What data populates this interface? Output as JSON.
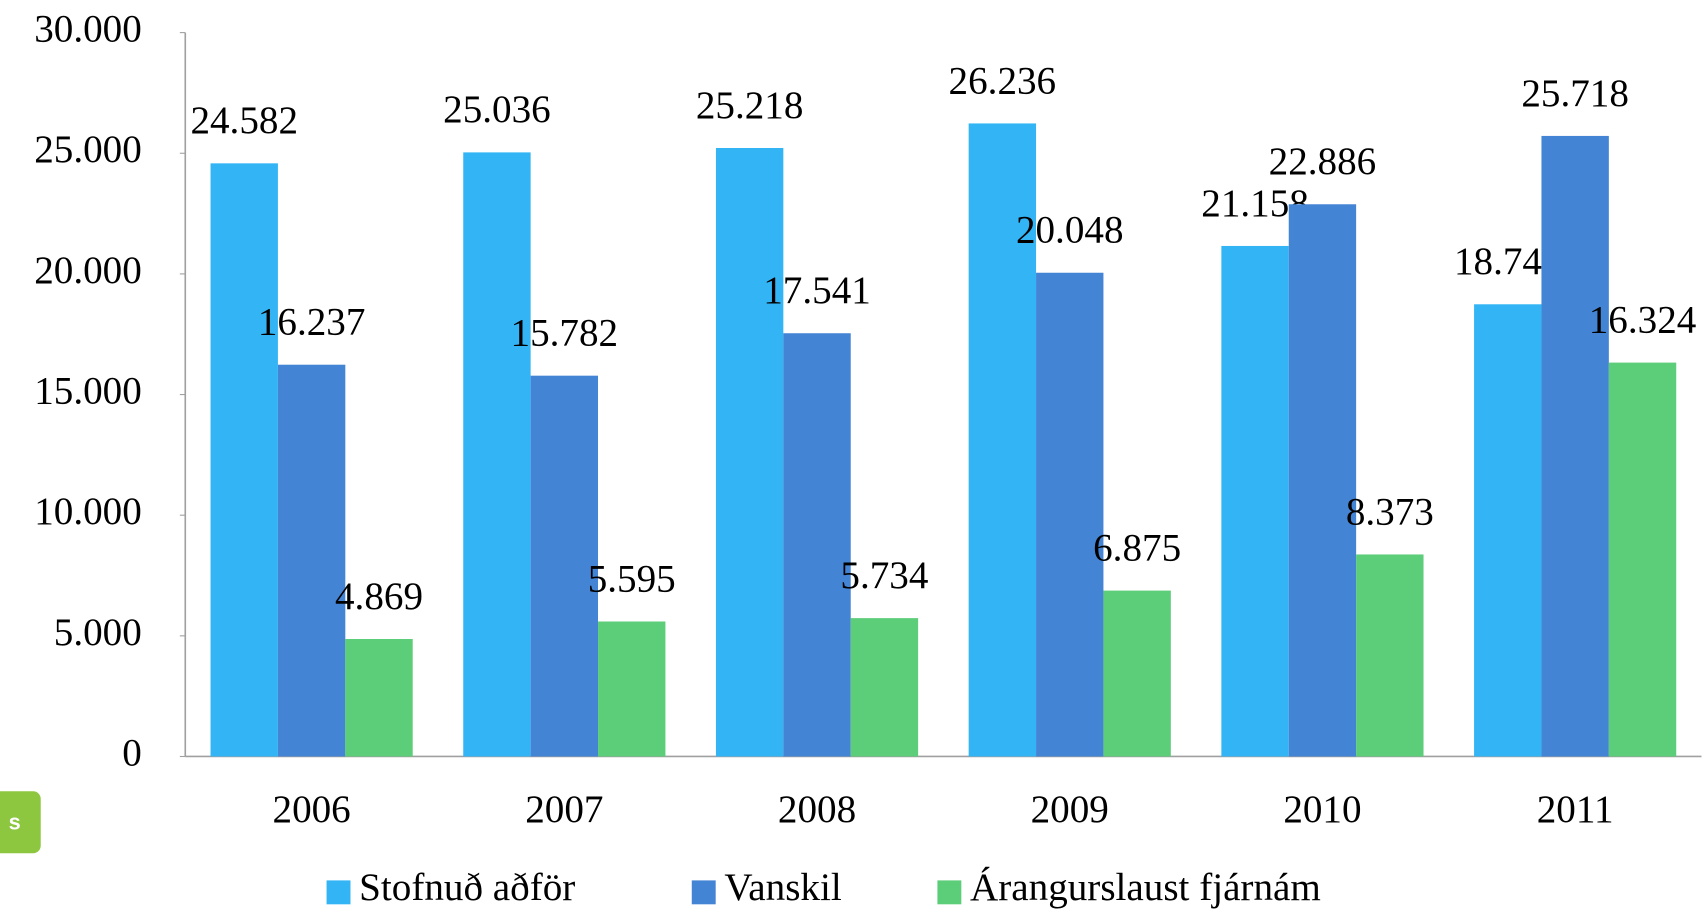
{
  "chart_data": {
    "type": "bar",
    "categories": [
      "2006",
      "2007",
      "2008",
      "2009",
      "2010",
      "2011"
    ],
    "series": [
      {
        "name": "Stofnuð aðför",
        "color": "#33b5f5",
        "values": [
          24582,
          25036,
          25218,
          26236,
          21158,
          18741
        ],
        "value_labels": [
          "24.582",
          "25.036",
          "25.218",
          "26.236",
          "21.158",
          "18.741"
        ]
      },
      {
        "name": "Vanskil",
        "color": "#4484d4",
        "values": [
          16237,
          15782,
          17541,
          20048,
          22886,
          25718
        ],
        "value_labels": [
          "16.237",
          "15.782",
          "17.541",
          "20.048",
          "22.886",
          "25.718"
        ]
      },
      {
        "name": "Árangurslaust fjárnám",
        "color": "#5ccd78",
        "values": [
          4869,
          5595,
          5734,
          6875,
          8373,
          16324
        ],
        "value_labels": [
          "4.869",
          "5.595",
          "5.734",
          "6.875",
          "8.373",
          "16.324"
        ]
      }
    ],
    "ylim": [
      0,
      30000
    ],
    "yticks": [
      0,
      {
        "value": 5000,
        "label": "5.000"
      },
      {
        "value": 10000,
        "label": "10.000"
      },
      {
        "value": 15000,
        "label": "15.000"
      },
      {
        "value": 20000,
        "label": "20.000"
      },
      {
        "value": 25000,
        "label": "25.000"
      },
      {
        "value": 30000,
        "label": "30.000"
      }
    ],
    "legend": "bottom",
    "grid": false
  },
  "badge_text": "s"
}
